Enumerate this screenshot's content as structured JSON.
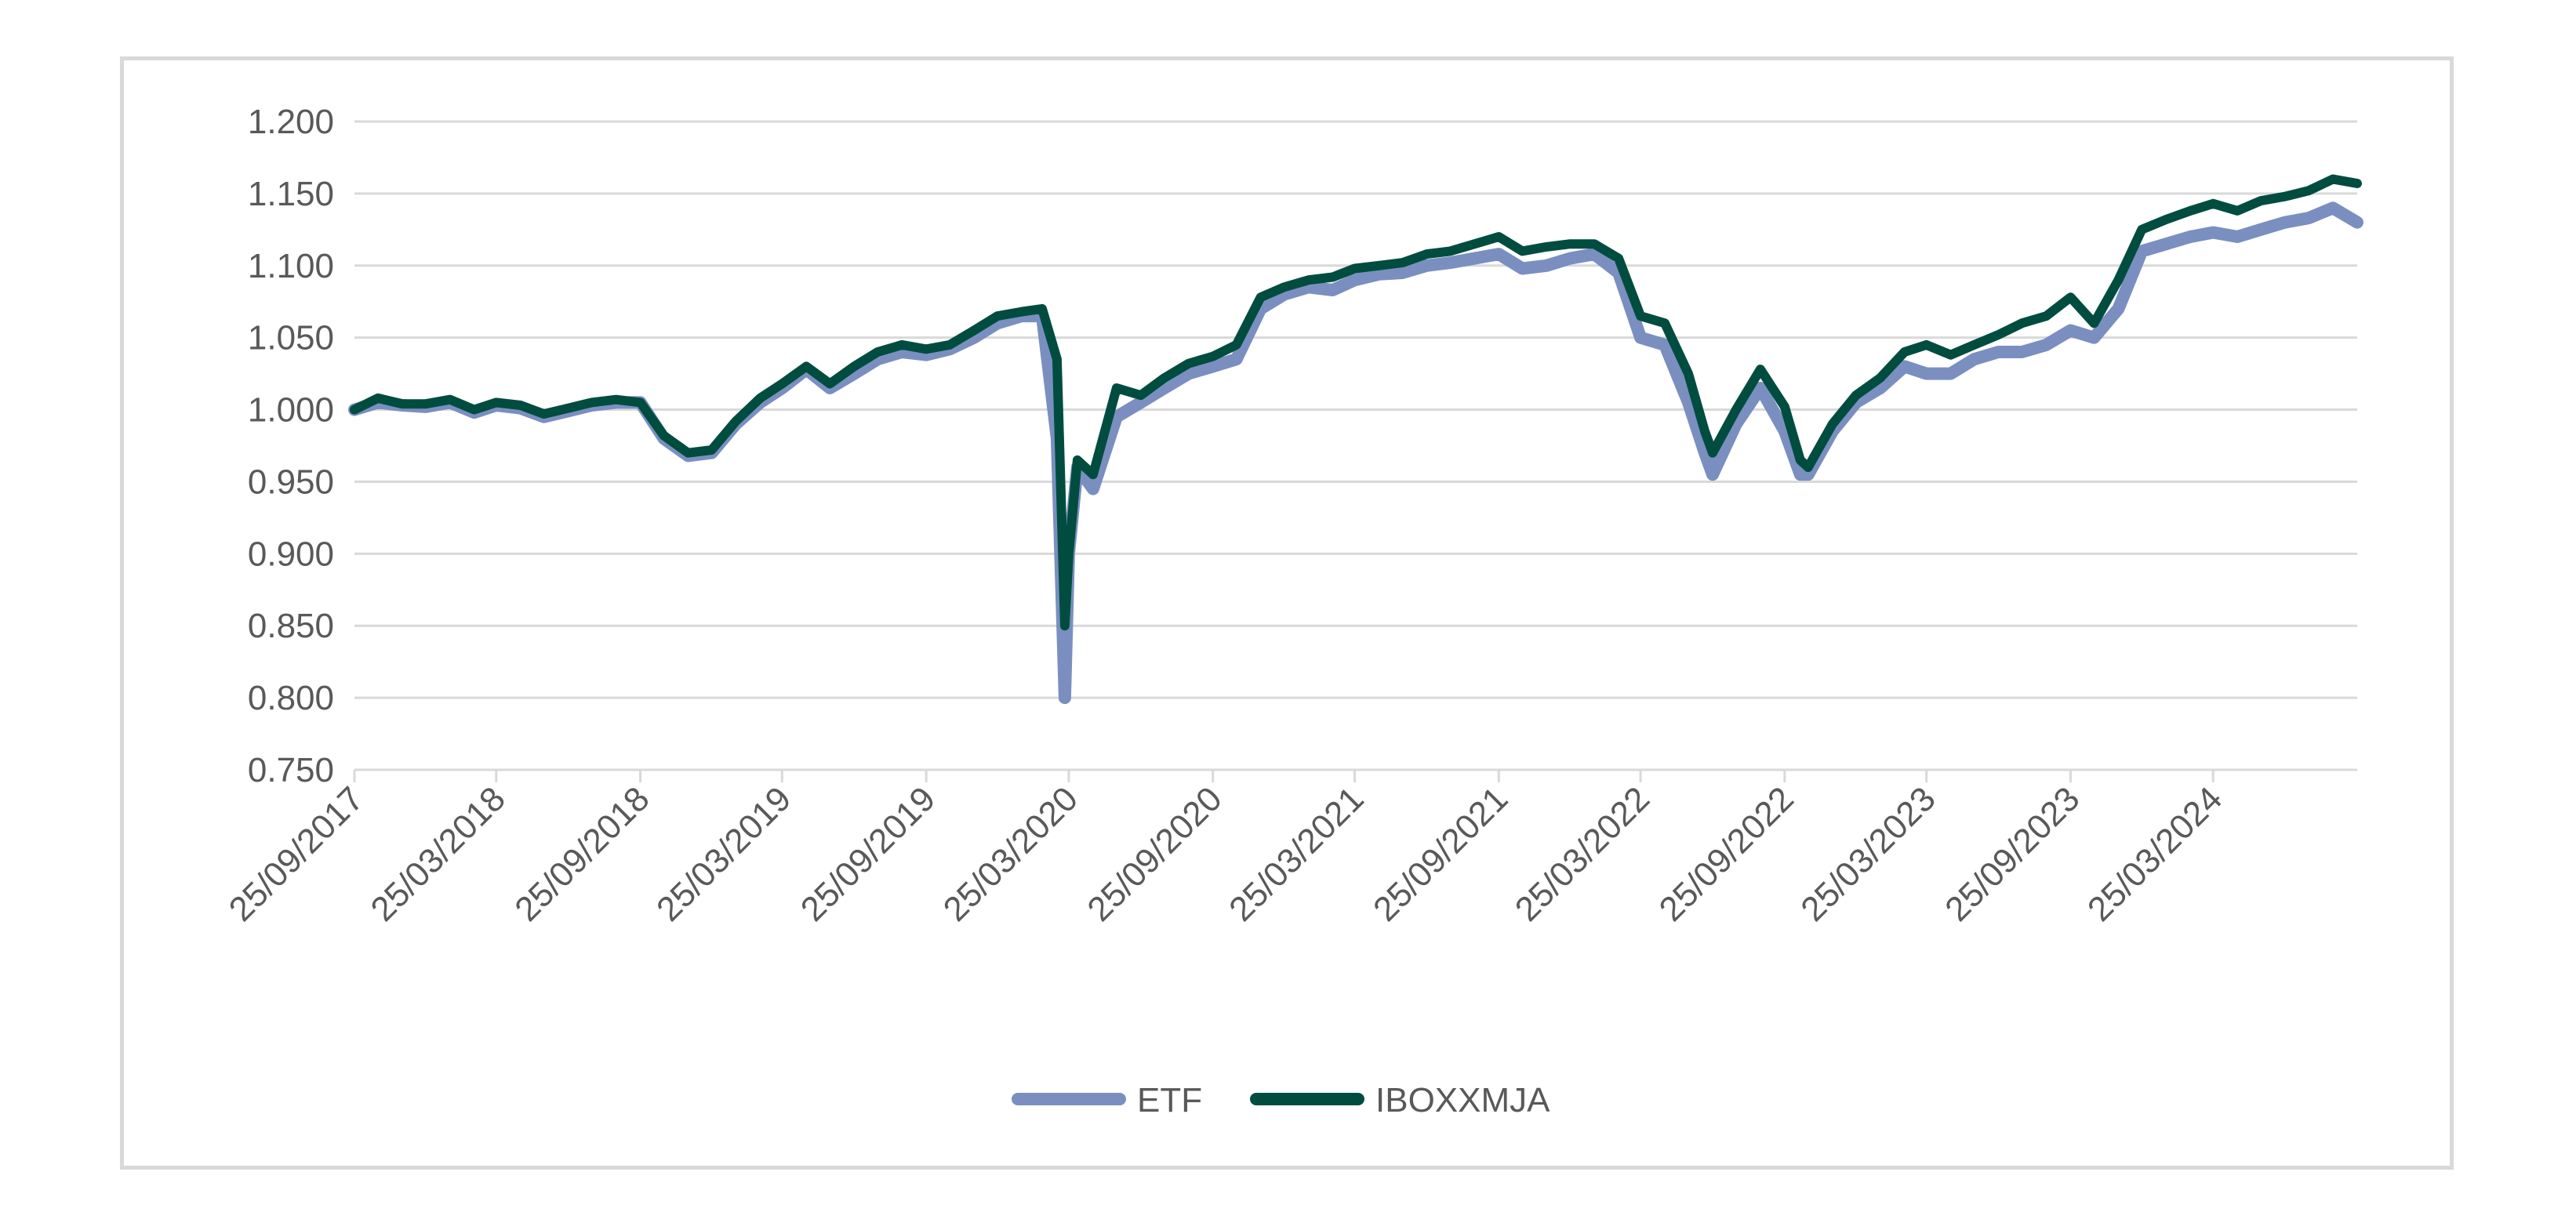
{
  "chart_data": {
    "type": "line",
    "title": "",
    "xlabel": "",
    "ylabel": "",
    "ylim": [
      0.75,
      1.2
    ],
    "yticks": [
      "1.200",
      "1.150",
      "1.100",
      "1.050",
      "1.000",
      "0.950",
      "0.900",
      "0.850",
      "0.800",
      "0.750"
    ],
    "xticks": [
      "25/09/2017",
      "25/03/2018",
      "25/09/2018",
      "25/03/2019",
      "25/09/2019",
      "25/03/2020",
      "25/09/2020",
      "25/03/2021",
      "25/09/2021",
      "25/03/2022",
      "25/09/2022",
      "25/03/2023",
      "25/09/2023",
      "25/03/2024"
    ],
    "grid": true,
    "legend_position": "bottom",
    "x": [
      "2017-09-25",
      "2017-10-25",
      "2017-11-25",
      "2017-12-25",
      "2018-01-25",
      "2018-02-25",
      "2018-03-25",
      "2018-04-25",
      "2018-05-25",
      "2018-06-25",
      "2018-07-25",
      "2018-08-25",
      "2018-09-25",
      "2018-10-25",
      "2018-11-25",
      "2018-12-25",
      "2019-01-25",
      "2019-02-25",
      "2019-03-25",
      "2019-04-25",
      "2019-05-25",
      "2019-06-25",
      "2019-07-25",
      "2019-08-25",
      "2019-09-25",
      "2019-10-25",
      "2019-11-25",
      "2019-12-25",
      "2020-01-25",
      "2020-02-20",
      "2020-03-10",
      "2020-03-20",
      "2020-03-25",
      "2020-04-05",
      "2020-04-25",
      "2020-05-25",
      "2020-06-25",
      "2020-07-25",
      "2020-08-25",
      "2020-09-25",
      "2020-10-25",
      "2020-11-25",
      "2020-12-25",
      "2021-01-25",
      "2021-02-25",
      "2021-03-25",
      "2021-04-25",
      "2021-05-25",
      "2021-06-25",
      "2021-07-25",
      "2021-08-25",
      "2021-09-25",
      "2021-10-25",
      "2021-11-25",
      "2021-12-25",
      "2022-01-25",
      "2022-02-25",
      "2022-03-25",
      "2022-04-25",
      "2022-05-25",
      "2022-06-15",
      "2022-06-25",
      "2022-07-25",
      "2022-08-25",
      "2022-09-25",
      "2022-10-15",
      "2022-10-25",
      "2022-11-25",
      "2022-12-25",
      "2023-01-25",
      "2023-02-25",
      "2023-03-25",
      "2023-04-25",
      "2023-05-25",
      "2023-06-25",
      "2023-07-25",
      "2023-08-25",
      "2023-09-25",
      "2023-10-25",
      "2023-11-25",
      "2023-12-25",
      "2024-01-25",
      "2024-02-25",
      "2024-03-25",
      "2024-04-25",
      "2024-05-25",
      "2024-06-25",
      "2024-07-25",
      "2024-08-25",
      "2024-09-25"
    ],
    "series": [
      {
        "name": "ETF",
        "color": "#7a8fc0",
        "values": [
          1.0,
          1.005,
          1.003,
          1.002,
          1.005,
          0.998,
          1.003,
          1.001,
          0.995,
          0.999,
          1.003,
          1.005,
          1.005,
          0.98,
          0.968,
          0.97,
          0.99,
          1.005,
          1.015,
          1.028,
          1.015,
          1.025,
          1.035,
          1.04,
          1.038,
          1.042,
          1.05,
          1.06,
          1.065,
          1.065,
          0.98,
          0.8,
          0.9,
          0.96,
          0.945,
          0.995,
          1.005,
          1.015,
          1.025,
          1.03,
          1.035,
          1.07,
          1.08,
          1.085,
          1.083,
          1.09,
          1.094,
          1.095,
          1.1,
          1.102,
          1.105,
          1.108,
          1.098,
          1.1,
          1.105,
          1.108,
          1.095,
          1.05,
          1.045,
          1.005,
          0.97,
          0.955,
          0.99,
          1.015,
          0.985,
          0.955,
          0.955,
          0.985,
          1.005,
          1.015,
          1.03,
          1.025,
          1.025,
          1.035,
          1.04,
          1.04,
          1.045,
          1.055,
          1.05,
          1.07,
          1.11,
          1.115,
          1.12,
          1.123,
          1.12,
          1.125,
          1.13,
          1.133,
          1.14,
          1.13
        ]
      },
      {
        "name": "IBOXXMJA",
        "color": "#004d40",
        "values": [
          1.0,
          1.008,
          1.004,
          1.004,
          1.007,
          1.0,
          1.005,
          1.003,
          0.997,
          1.001,
          1.005,
          1.007,
          1.005,
          0.982,
          0.97,
          0.972,
          0.992,
          1.008,
          1.018,
          1.03,
          1.018,
          1.03,
          1.04,
          1.045,
          1.042,
          1.045,
          1.055,
          1.065,
          1.068,
          1.07,
          1.035,
          0.85,
          0.9,
          0.965,
          0.955,
          1.015,
          1.01,
          1.022,
          1.032,
          1.037,
          1.045,
          1.078,
          1.085,
          1.09,
          1.092,
          1.098,
          1.1,
          1.102,
          1.108,
          1.11,
          1.115,
          1.12,
          1.11,
          1.113,
          1.115,
          1.115,
          1.105,
          1.065,
          1.06,
          1.025,
          0.985,
          0.97,
          1.0,
          1.028,
          1.002,
          0.965,
          0.96,
          0.99,
          1.01,
          1.022,
          1.04,
          1.045,
          1.038,
          1.045,
          1.052,
          1.06,
          1.065,
          1.078,
          1.06,
          1.09,
          1.125,
          1.132,
          1.138,
          1.143,
          1.138,
          1.145,
          1.148,
          1.152,
          1.16,
          1.157
        ]
      }
    ]
  }
}
